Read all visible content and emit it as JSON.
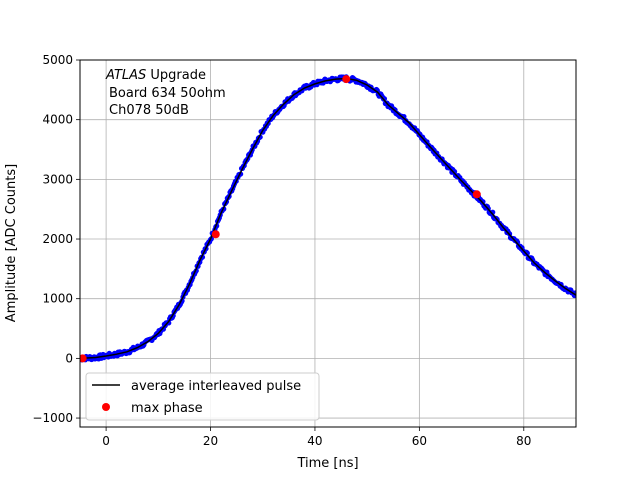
{
  "chart_data": {
    "type": "scatter",
    "title": "",
    "xlabel": "Time [ns]",
    "ylabel": "Amplitude [ADC Counts]",
    "xlim": [
      -5,
      90
    ],
    "ylim": [
      -1150,
      5000
    ],
    "xticks": [
      0,
      20,
      40,
      60,
      80
    ],
    "yticks": [
      -1000,
      0,
      1000,
      2000,
      3000,
      4000,
      5000
    ],
    "grid": true,
    "annotation": {
      "lines": [
        {
          "italic": "ATLAS",
          "rest": " Upgrade"
        },
        {
          "italic": "",
          "rest": "Board 634 50ohm"
        },
        {
          "italic": "",
          "rest": "Ch078 50dB"
        }
      ]
    },
    "legend": {
      "placement": "lower-left",
      "entries": [
        {
          "label": "average interleaved pulse",
          "style": "line",
          "color": "#000000"
        },
        {
          "label": "max phase",
          "style": "marker",
          "color": "#ff0000"
        }
      ]
    },
    "colors": {
      "samples": "#0000ff",
      "average": "#000000",
      "max_phase": "#ff0000"
    },
    "series": [
      {
        "style": "average-line",
        "x": [
          -5,
          -2,
          0,
          2,
          4,
          6,
          8,
          10,
          12,
          14,
          16,
          18,
          20,
          22,
          24,
          26,
          28,
          30,
          32,
          34,
          36,
          38,
          40,
          42,
          44,
          46,
          48,
          50,
          52,
          54,
          56,
          58,
          60,
          62,
          64,
          66,
          68,
          70,
          72,
          74,
          76,
          78,
          80,
          82,
          84,
          86,
          88,
          90
        ],
        "y": [
          0,
          15,
          40,
          70,
          110,
          180,
          280,
          420,
          620,
          900,
          1250,
          1650,
          2000,
          2430,
          2800,
          3160,
          3500,
          3820,
          4070,
          4260,
          4420,
          4530,
          4600,
          4650,
          4680,
          4690,
          4660,
          4580,
          4460,
          4250,
          4100,
          3950,
          3750,
          3550,
          3360,
          3170,
          2980,
          2800,
          2620,
          2420,
          2200,
          2000,
          1800,
          1600,
          1440,
          1300,
          1170,
          1060
        ]
      },
      {
        "style": "max-phase-markers",
        "x": [
          -4.5,
          21,
          46,
          71
        ],
        "y": [
          0,
          2080,
          4680,
          2750
        ]
      }
    ]
  }
}
